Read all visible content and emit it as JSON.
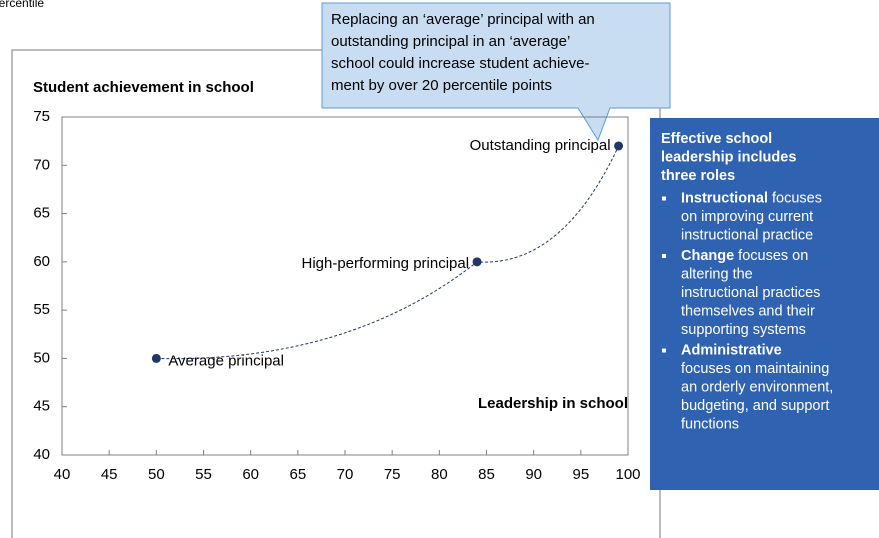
{
  "top_note": "percentile",
  "chart_data": {
    "type": "scatter",
    "y_label": "Student achievement in school",
    "x_label": "Leadership in school",
    "x": [
      50,
      84,
      99
    ],
    "values": [
      50,
      60,
      72
    ],
    "point_labels": [
      "Average principal",
      "High-performing principal",
      "Outstanding principal"
    ],
    "color": "#1f3864",
    "xlim": [
      40,
      100
    ],
    "xticks": [
      40,
      45,
      50,
      55,
      60,
      65,
      70,
      75,
      80,
      85,
      90,
      95,
      100
    ],
    "ylim": [
      40,
      75
    ],
    "yticks": [
      40,
      45,
      50,
      55,
      60,
      65,
      70,
      75
    ],
    "grid": false,
    "callout": [
      "Replacing an ‘average’ principal with an",
      "outstanding principal in an ‘average’",
      "school could increase student achieve-",
      "ment by over 20 percentile points"
    ]
  },
  "sidebar": {
    "title": [
      "Effective school",
      "leadership includes",
      "three roles"
    ],
    "bullets": [
      {
        "bold": "Instructional",
        "lines": [
          "focuses",
          "on improving current",
          "instructional practice"
        ]
      },
      {
        "bold": "Change",
        "lines": [
          "focuses on",
          "altering the",
          "instructional practices",
          "themselves and their",
          "supporting systems"
        ]
      },
      {
        "bold": "Administrative",
        "lines": [
          "focuses on maintaining",
          "an orderly environment,",
          "budgeting, and support",
          "functions"
        ]
      }
    ]
  }
}
